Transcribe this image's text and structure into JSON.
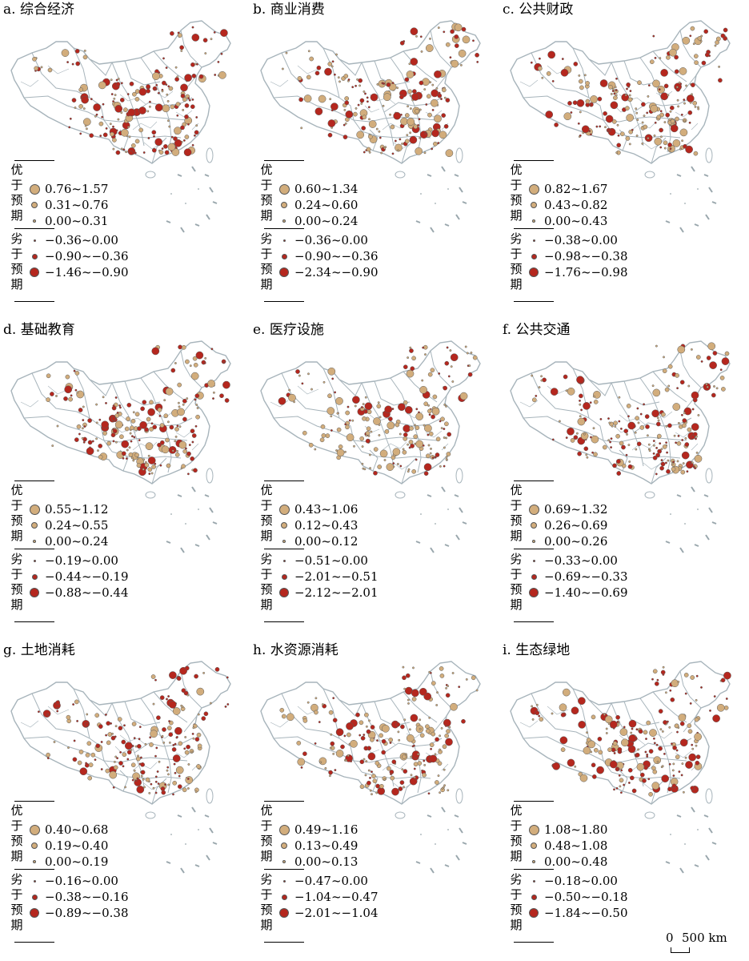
{
  "panels": [
    {
      "title": "a. 综合经济",
      "pos": [
        "0.76~1.57",
        "0.31~0.76",
        "0.00~0.31"
      ],
      "neg": [
        "−0.36~0.00",
        "−0.90~−0.36",
        "−1.46~−0.90"
      ],
      "nord_bias": 0.55
    },
    {
      "title": "b. 商业消费",
      "pos": [
        "0.60~1.34",
        "0.24~0.60",
        "0.00~0.24"
      ],
      "neg": [
        "−0.36~0.00",
        "−0.90~−0.36",
        "−2.34~−0.90"
      ],
      "nord_bias": 0.45
    },
    {
      "title": "c. 公共财政",
      "pos": [
        "0.82~1.67",
        "0.43~0.82",
        "0.00~0.43"
      ],
      "neg": [
        "−0.38~0.00",
        "−0.98~−0.38",
        "−1.76~−0.98"
      ],
      "nord_bias": 0.5
    },
    {
      "title": "d. 基础教育",
      "pos": [
        "0.55~1.12",
        "0.24~0.55",
        "0.00~0.24"
      ],
      "neg": [
        "−0.19~0.00",
        "−0.44~−0.19",
        "−0.88~−0.44"
      ],
      "nord_bias": 0.5
    },
    {
      "title": "e. 医疗设施",
      "pos": [
        "0.43~1.06",
        "0.12~0.43",
        "0.00~0.12"
      ],
      "neg": [
        "−0.51~0.00",
        "−2.01~−0.51",
        "−2.12~−2.01"
      ],
      "nord_bias": 0.35
    },
    {
      "title": "f. 公共交通",
      "pos": [
        "0.69~1.32",
        "0.26~0.69",
        "0.00~0.26"
      ],
      "neg": [
        "−0.33~0.00",
        "−0.69~−0.33",
        "−1.40~−0.69"
      ],
      "nord_bias": 0.5
    },
    {
      "title": "g. 土地消耗",
      "pos": [
        "0.40~0.68",
        "0.19~0.40",
        "0.00~0.19"
      ],
      "neg": [
        "−0.16~0.00",
        "−0.38~−0.16",
        "−0.89~−0.38"
      ],
      "nord_bias": 0.55
    },
    {
      "title": "h. 水资源消耗",
      "pos": [
        "0.49~1.16",
        "0.13~0.49",
        "0.00~0.13"
      ],
      "neg": [
        "−0.47~0.00",
        "−1.04~−0.47",
        "−2.01~−1.04"
      ],
      "nord_bias": 0.4
    },
    {
      "title": "i. 生态绿地",
      "pos": [
        "1.08~1.80",
        "0.48~1.08",
        "0.00~0.48"
      ],
      "neg": [
        "−0.18~0.00",
        "−0.50~−0.18",
        "−1.84~−0.50"
      ],
      "nord_bias": 0.6
    }
  ],
  "legend_groups": {
    "positive": [
      "优",
      "于",
      "预",
      "期"
    ],
    "negative": [
      "劣",
      "于",
      "预",
      "期"
    ]
  },
  "colors": {
    "positive": "#d2ad7c",
    "negative": "#b5271e",
    "boundary": "#a7b4bb",
    "islands": "#9aa7ad"
  },
  "scale": {
    "zero": "0",
    "label": "500 km"
  }
}
